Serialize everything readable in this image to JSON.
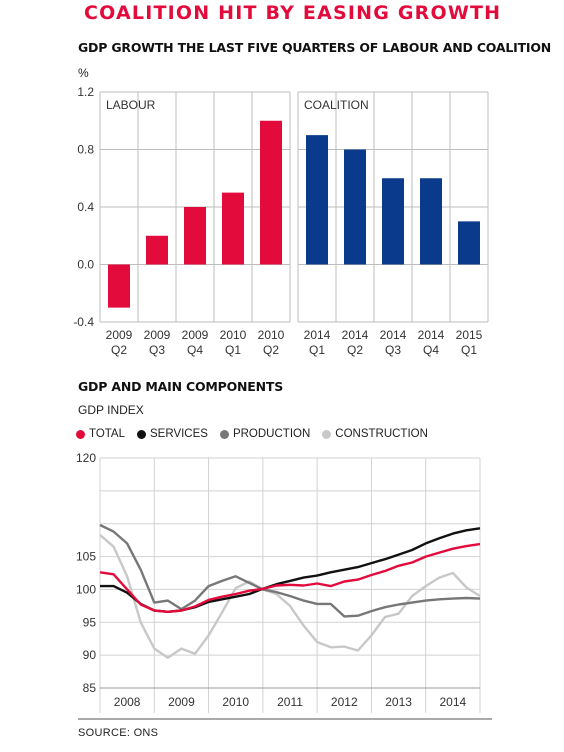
{
  "header": {
    "title": "COALITION HIT BY EASING GROWTH"
  },
  "source": "SOURCE: ONS",
  "chart_data": [
    {
      "type": "bar",
      "title": "GDP GROWTH THE LAST FIVE QUARTERS OF LABOUR AND COALITION",
      "ylabel": "%",
      "ylim": [
        -0.4,
        1.2
      ],
      "yticks": [
        "1.2",
        "0.8",
        "0.4",
        "0.0",
        "-0.4"
      ],
      "grid": true,
      "panels": [
        {
          "name": "LABOUR",
          "color": "#e30b3c",
          "categories": [
            [
              "2009",
              "Q2"
            ],
            [
              "2009",
              "Q3"
            ],
            [
              "2009",
              "Q4"
            ],
            [
              "2010",
              "Q1"
            ],
            [
              "2010",
              "Q2"
            ]
          ],
          "values": [
            -0.3,
            0.2,
            0.4,
            0.5,
            1.0
          ]
        },
        {
          "name": "COALITION",
          "color": "#0a3a8c",
          "categories": [
            [
              "2014",
              "Q1"
            ],
            [
              "2014",
              "Q2"
            ],
            [
              "2014",
              "Q3"
            ],
            [
              "2014",
              "Q4"
            ],
            [
              "2015",
              "Q1"
            ]
          ],
          "values": [
            0.9,
            0.8,
            0.6,
            0.6,
            0.3
          ]
        }
      ]
    },
    {
      "type": "line",
      "title": "GDP AND MAIN COMPONENTS",
      "ylabel": "GDP INDEX",
      "ylim": [
        85,
        120
      ],
      "yticks": [
        "120",
        "105",
        "100",
        "95",
        "90",
        "85"
      ],
      "xlim": [
        2008,
        2015
      ],
      "xticks": [
        "2008",
        "2009",
        "2010",
        "2011",
        "2012",
        "2013",
        "2014"
      ],
      "grid": true,
      "legend_position": "top-left",
      "series": [
        {
          "name": "TOTAL",
          "color": "#e30b3c",
          "x": [
            2008,
            2008.25,
            2008.5,
            2008.75,
            2009,
            2009.25,
            2009.5,
            2009.75,
            2010,
            2010.25,
            2010.5,
            2010.75,
            2011,
            2011.25,
            2011.5,
            2011.75,
            2012,
            2012.25,
            2012.5,
            2012.75,
            2013,
            2013.25,
            2013.5,
            2013.75,
            2014,
            2014.25,
            2014.5,
            2014.75,
            2015
          ],
          "values": [
            102.6,
            102.3,
            100.0,
            97.7,
            96.8,
            96.6,
            96.8,
            97.4,
            98.4,
            98.9,
            99.3,
            99.8,
            100.1,
            100.6,
            100.7,
            100.6,
            100.9,
            100.5,
            101.2,
            101.5,
            102.2,
            102.8,
            103.6,
            104.1,
            105.0,
            105.6,
            106.2,
            106.6,
            106.9
          ]
        },
        {
          "name": "SERVICES",
          "color": "#111111",
          "x": [
            2008,
            2008.25,
            2008.5,
            2008.75,
            2009,
            2009.25,
            2009.5,
            2009.75,
            2010,
            2010.25,
            2010.5,
            2010.75,
            2011,
            2011.25,
            2011.5,
            2011.75,
            2012,
            2012.25,
            2012.5,
            2012.75,
            2013,
            2013.25,
            2013.5,
            2013.75,
            2014,
            2014.25,
            2014.5,
            2014.75,
            2015
          ],
          "values": [
            100.5,
            100.5,
            99.5,
            97.8,
            96.8,
            96.6,
            96.8,
            97.3,
            98.1,
            98.5,
            98.9,
            99.3,
            100.1,
            100.8,
            101.3,
            101.8,
            102.1,
            102.6,
            103.0,
            103.4,
            104.0,
            104.6,
            105.3,
            106.0,
            107.0,
            107.8,
            108.5,
            109.0,
            109.3
          ]
        },
        {
          "name": "PRODUCTION",
          "color": "#777777",
          "x": [
            2008,
            2008.25,
            2008.5,
            2008.75,
            2009,
            2009.25,
            2009.5,
            2009.75,
            2010,
            2010.25,
            2010.5,
            2010.75,
            2011,
            2011.25,
            2011.5,
            2011.75,
            2012,
            2012.25,
            2012.5,
            2012.75,
            2013,
            2013.25,
            2013.5,
            2013.75,
            2014,
            2014.25,
            2014.5,
            2014.75,
            2015
          ],
          "values": [
            109.8,
            108.8,
            107.0,
            103.0,
            98.0,
            98.3,
            97.0,
            98.3,
            100.5,
            101.3,
            102.0,
            101.0,
            100.0,
            99.6,
            99.0,
            98.3,
            97.8,
            97.8,
            95.9,
            96.0,
            96.7,
            97.3,
            97.7,
            98.0,
            98.3,
            98.5,
            98.6,
            98.7,
            98.6
          ]
        },
        {
          "name": "CONSTRUCTION",
          "color": "#c8c8c8",
          "x": [
            2008,
            2008.25,
            2008.5,
            2008.75,
            2009,
            2009.25,
            2009.5,
            2009.75,
            2010,
            2010.25,
            2010.5,
            2010.75,
            2011,
            2011.25,
            2011.5,
            2011.75,
            2012,
            2012.25,
            2012.5,
            2012.75,
            2013,
            2013.25,
            2013.5,
            2013.75,
            2014,
            2014.25,
            2014.5,
            2014.75,
            2015
          ],
          "values": [
            108.3,
            106.5,
            102.0,
            95.0,
            91.0,
            89.6,
            91.0,
            90.2,
            93.0,
            96.5,
            100.2,
            101.2,
            100.0,
            99.3,
            97.5,
            94.5,
            92.0,
            91.2,
            91.3,
            90.7,
            93.0,
            95.8,
            96.3,
            99.0,
            100.5,
            101.8,
            102.5,
            100.3,
            99.0
          ]
        }
      ]
    }
  ]
}
